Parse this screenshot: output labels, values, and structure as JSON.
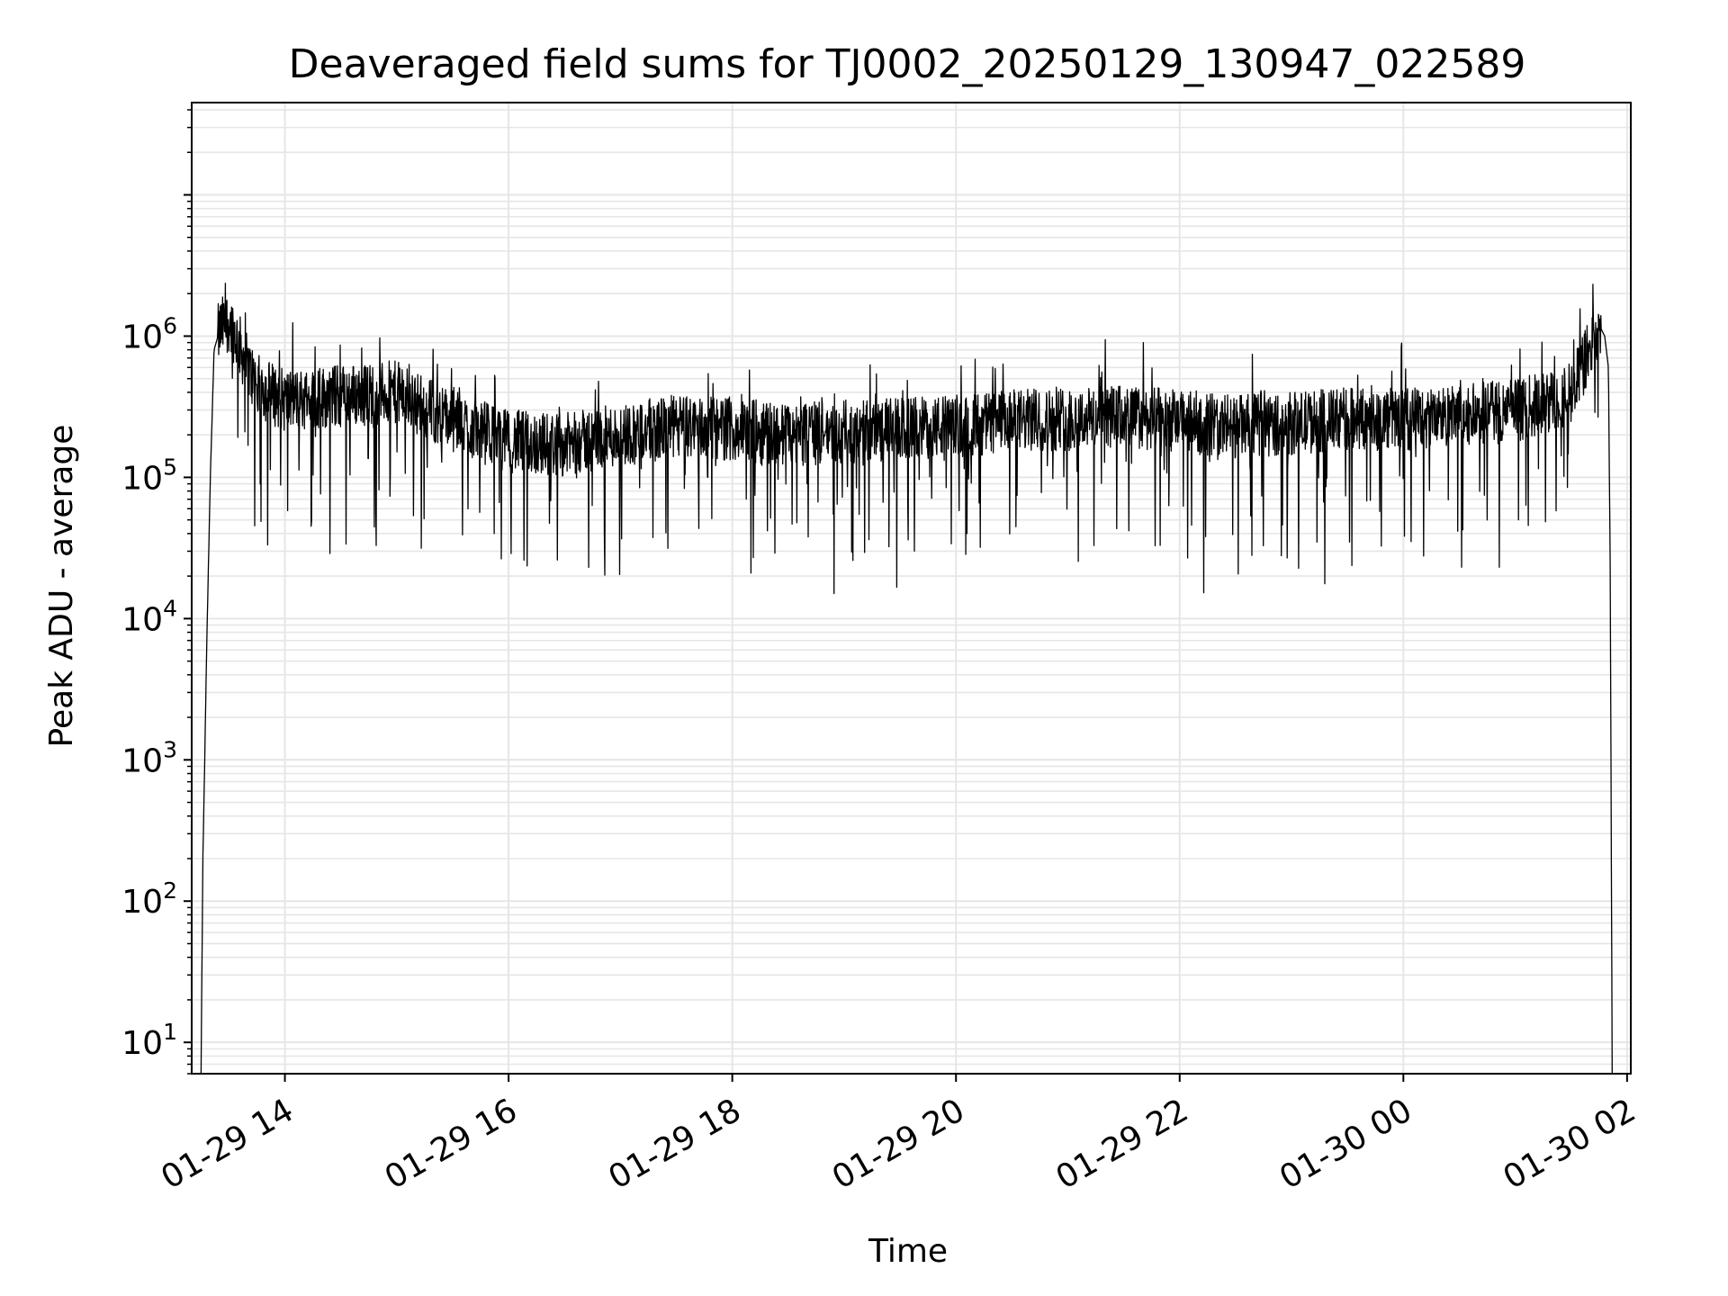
{
  "chart_data": {
    "type": "line",
    "title": "Deaveraged field sums for TJ0002_20250129_130947_022589",
    "xlabel": "Time",
    "ylabel": "Peak ADU - average",
    "yscale": "log",
    "grid": "on (major and minor)",
    "legend": "none",
    "line_color": "#000000",
    "grid_color": "#e6e6e6",
    "xlim": [
      "2025-01-29 13:10",
      "2025-01-30 02:02"
    ],
    "ylim": [
      6,
      45000000
    ],
    "x_ticks": [
      {
        "value": "2025-01-29 14:00",
        "label": "01-29 14"
      },
      {
        "value": "2025-01-29 16:00",
        "label": "01-29 16"
      },
      {
        "value": "2025-01-29 18:00",
        "label": "01-29 18"
      },
      {
        "value": "2025-01-29 20:00",
        "label": "01-29 20"
      },
      {
        "value": "2025-01-29 22:00",
        "label": "01-29 22"
      },
      {
        "value": "2025-01-30 00:00",
        "label": "01-30 00"
      },
      {
        "value": "2025-01-30 02:00",
        "label": "01-30 02"
      }
    ],
    "y_ticks": [
      {
        "value": 10,
        "base": "10",
        "exp": "1"
      },
      {
        "value": 100,
        "base": "10",
        "exp": "2"
      },
      {
        "value": 1000,
        "base": "10",
        "exp": "3"
      },
      {
        "value": 10000,
        "base": "10",
        "exp": "4"
      },
      {
        "value": 100000,
        "base": "10",
        "exp": "5"
      },
      {
        "value": 1000000,
        "base": "10",
        "exp": "6"
      }
    ],
    "series": [
      {
        "note_values": "approximate envelope of the noisy signal read from the plot",
        "x": [
          "2025-01-29 13:15",
          "2025-01-29 13:16",
          "2025-01-29 13:17",
          "2025-01-29 13:18",
          "2025-01-29 13:20",
          "2025-01-29 13:22",
          "2025-01-29 13:25",
          "2025-01-29 13:30",
          "2025-01-29 13:35",
          "2025-01-29 13:40",
          "2025-01-29 13:45",
          "2025-01-29 14:00",
          "2025-01-29 14:30",
          "2025-01-29 15:00",
          "2025-01-29 15:30",
          "2025-01-29 16:00",
          "2025-01-29 16:30",
          "2025-01-29 17:00",
          "2025-01-29 17:30",
          "2025-01-29 18:00",
          "2025-01-29 18:30",
          "2025-01-29 19:00",
          "2025-01-29 19:30",
          "2025-01-29 20:00",
          "2025-01-29 20:30",
          "2025-01-29 21:00",
          "2025-01-29 21:30",
          "2025-01-29 22:00",
          "2025-01-29 22:30",
          "2025-01-29 23:00",
          "2025-01-29 23:30",
          "2025-01-30 00:00",
          "2025-01-30 00:30",
          "2025-01-30 01:00",
          "2025-01-30 01:15",
          "2025-01-30 01:30",
          "2025-01-30 01:40",
          "2025-01-30 01:45",
          "2025-01-30 01:48",
          "2025-01-30 01:50",
          "2025-01-30 01:51",
          "2025-01-30 01:52"
        ],
        "y": [
          6,
          200,
          1000,
          6000,
          100000,
          800000,
          1100000,
          1300000,
          900000,
          600000,
          450000,
          350000,
          380000,
          400000,
          250000,
          180000,
          170000,
          200000,
          230000,
          220000,
          200000,
          210000,
          220000,
          230000,
          250000,
          260000,
          270000,
          250000,
          230000,
          240000,
          260000,
          260000,
          270000,
          300000,
          330000,
          400000,
          800000,
          1200000,
          1000000,
          600000,
          20000,
          6
        ]
      }
    ]
  }
}
